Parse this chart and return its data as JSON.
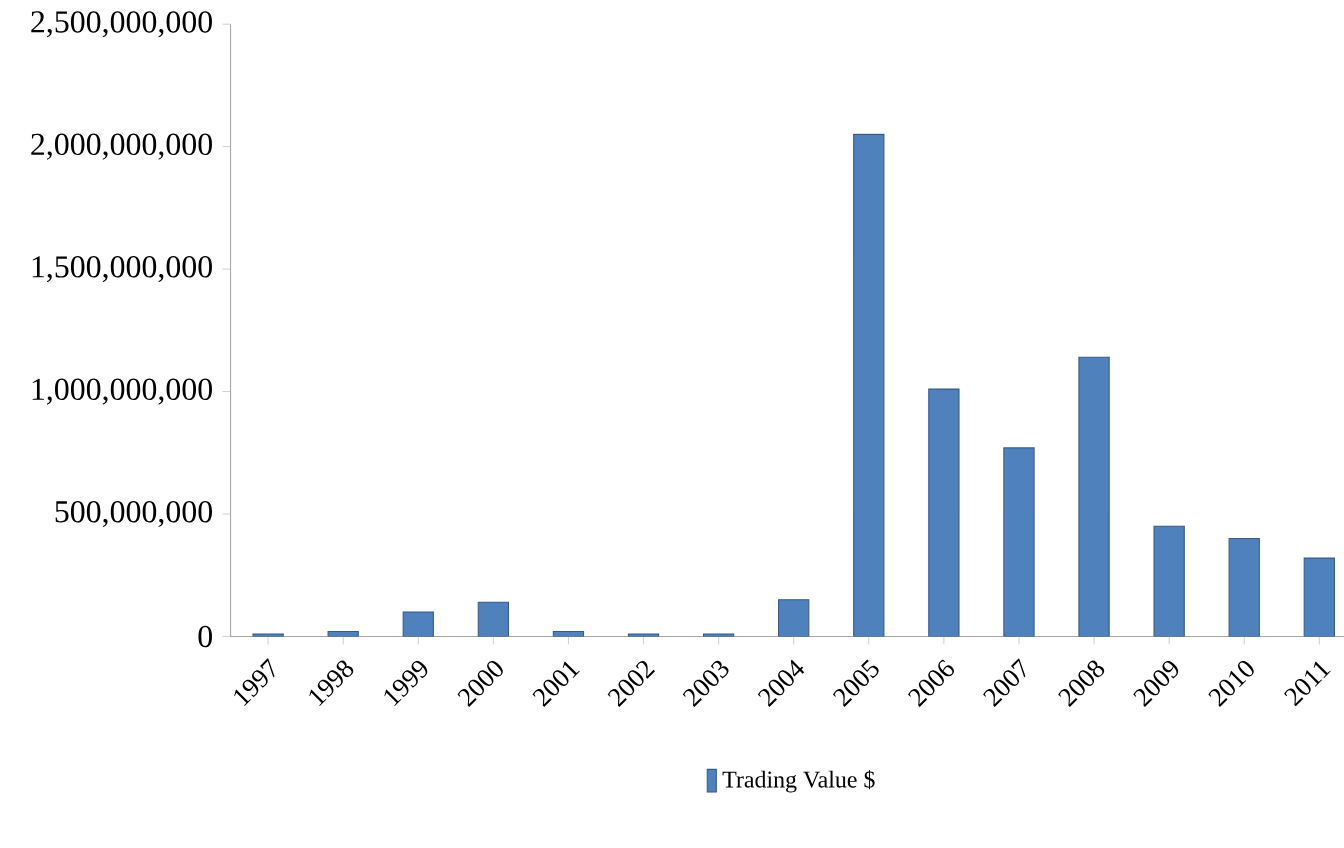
{
  "chart_data": {
    "type": "bar",
    "categories": [
      "1997",
      "1998",
      "1999",
      "2000",
      "2001",
      "2002",
      "2003",
      "2004",
      "2005",
      "2006",
      "2007",
      "2008",
      "2009",
      "2010",
      "2011"
    ],
    "series": [
      {
        "name": "Trading Value $",
        "color": "#4f81bd",
        "values": [
          10000000,
          20000000,
          100000000,
          140000000,
          20000000,
          10000000,
          10000000,
          150000000,
          2050000000,
          1010000000,
          770000000,
          1140000000,
          450000000,
          400000000,
          320000000
        ]
      }
    ],
    "ylim": [
      0,
      2500000000
    ],
    "yticks": [
      {
        "value": 0,
        "label": "0"
      },
      {
        "value": 500000000,
        "label": "500,000,000"
      },
      {
        "value": 1000000000,
        "label": "1,000,000,000"
      },
      {
        "value": 1500000000,
        "label": "1,500,000,000"
      },
      {
        "value": 2000000000,
        "label": "2,000,000,000"
      },
      {
        "value": 2500000000,
        "label": "2,500,000,000"
      }
    ],
    "legend": "bottom"
  }
}
